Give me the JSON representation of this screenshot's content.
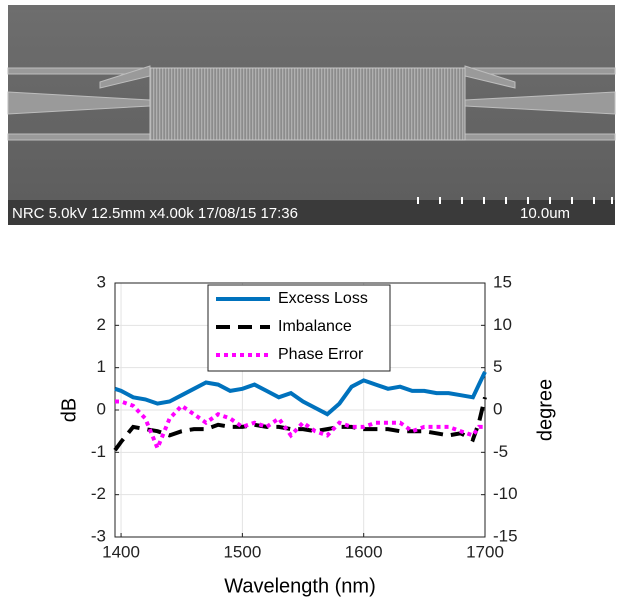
{
  "image": {
    "caption": "NRC 5.0kV 12.5mm x4.00k 17/08/15 17:36",
    "scale_label": "10.0um"
  },
  "chart_data": {
    "type": "line",
    "xlabel": "Wavelength (nm)",
    "ylabel": "dB",
    "y2label": "degree",
    "x": [
      1395,
      1400,
      1410,
      1420,
      1430,
      1440,
      1450,
      1460,
      1470,
      1480,
      1490,
      1500,
      1510,
      1520,
      1530,
      1540,
      1550,
      1560,
      1570,
      1580,
      1590,
      1600,
      1610,
      1620,
      1630,
      1640,
      1650,
      1660,
      1670,
      1680,
      1690,
      1695,
      1700
    ],
    "series": [
      {
        "name": "Excess Loss",
        "color": "#0072bd",
        "style": "solid",
        "values": [
          0.5,
          0.45,
          0.3,
          0.25,
          0.15,
          0.2,
          0.35,
          0.5,
          0.65,
          0.6,
          0.45,
          0.5,
          0.6,
          0.45,
          0.3,
          0.4,
          0.2,
          0.05,
          -0.1,
          0.15,
          0.55,
          0.7,
          0.6,
          0.5,
          0.55,
          0.45,
          0.45,
          0.4,
          0.4,
          0.35,
          0.3,
          0.6,
          0.9
        ]
      },
      {
        "name": "Imbalance",
        "color": "#000000",
        "style": "dashed",
        "values": [
          -0.95,
          -0.75,
          -0.4,
          -0.45,
          -0.5,
          -0.6,
          -0.5,
          -0.45,
          -0.45,
          -0.35,
          -0.4,
          -0.4,
          -0.35,
          -0.4,
          -0.4,
          -0.45,
          -0.45,
          -0.5,
          -0.45,
          -0.4,
          -0.4,
          -0.45,
          -0.45,
          -0.45,
          -0.5,
          -0.5,
          -0.5,
          -0.55,
          -0.6,
          -0.55,
          -0.7,
          -0.3,
          0.3
        ]
      },
      {
        "name": "Phase Error",
        "color": "#ff00ff",
        "style": "dotted",
        "axis": "y2",
        "values": [
          1,
          1,
          0.5,
          -1,
          -4.5,
          -1,
          0.5,
          -0.5,
          -1.5,
          -0.5,
          -1,
          -2,
          -1.5,
          -2,
          -1,
          -3,
          -1.5,
          -2.5,
          -3,
          -1.5,
          -2,
          -2,
          -1.5,
          -1.5,
          -1.5,
          -2.5,
          -2,
          -2,
          -2,
          -2.5,
          -3,
          -2,
          -2
        ]
      }
    ],
    "xlim": [
      1395,
      1700
    ],
    "xticks": [
      1400,
      1500,
      1600,
      1700
    ],
    "ylim": [
      -3,
      3
    ],
    "yticks": [
      -3,
      -2,
      -1,
      0,
      1,
      2,
      3
    ],
    "y2lim": [
      -15,
      15
    ],
    "y2ticks": [
      -15,
      -10,
      -5,
      0,
      5,
      10,
      15
    ],
    "grid": true,
    "legend": "top"
  }
}
